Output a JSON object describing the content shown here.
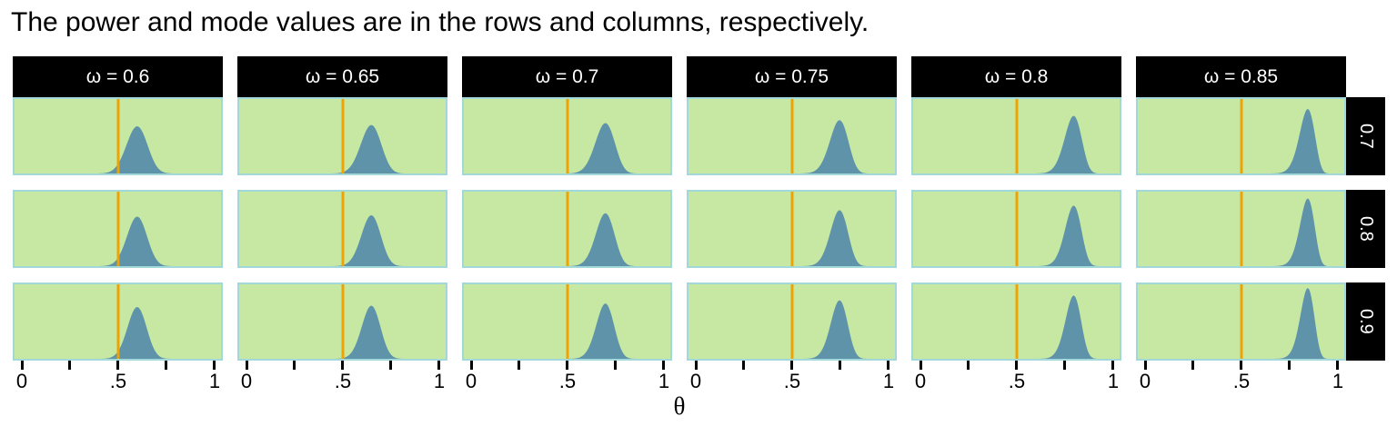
{
  "title": "The power and mode values are in the rows and columns, respectively.",
  "colors": {
    "panel_bg": "#c6e8a3",
    "panel_border": "#a2d8da",
    "density_fill": "#5e93aa",
    "ref_line": "#efa202",
    "strip_bg": "#000000",
    "strip_text": "#ffffff",
    "axis_text": "#000000",
    "title_text": "#000000",
    "background": "#ffffff"
  },
  "chart_data": {
    "type": "area",
    "description": "Facet grid of beta posterior distributions; columns are mode values, rows are power values",
    "facet_columns": {
      "variable": "ω",
      "values": [
        0.6,
        0.65,
        0.7,
        0.75,
        0.8,
        0.85
      ],
      "strip_labels": [
        "ω = 0.6",
        "ω = 0.65",
        "ω = 0.7",
        "ω = 0.75",
        "ω = 0.8",
        "ω = 0.85"
      ]
    },
    "facet_rows": {
      "variable": "power",
      "values": [
        0.7,
        0.8,
        0.9
      ],
      "strip_labels": [
        "0.7",
        "0.8",
        "0.9"
      ]
    },
    "x_axis": {
      "label": "θ",
      "range": [
        0,
        1
      ],
      "ticks": [
        {
          "x": 0,
          "label": "0"
        },
        {
          "x": 0.25,
          "label": ""
        },
        {
          "x": 0.5,
          "label": ".5"
        },
        {
          "x": 0.75,
          "label": ""
        },
        {
          "x": 1,
          "label": "1"
        }
      ]
    },
    "reference_line_x": 0.5,
    "distribution": {
      "family": "beta-by-mode",
      "concentration_by_row": [
        80,
        88,
        96
      ],
      "peak_scale": 0.95
    },
    "legend": "none",
    "grid": "off"
  }
}
